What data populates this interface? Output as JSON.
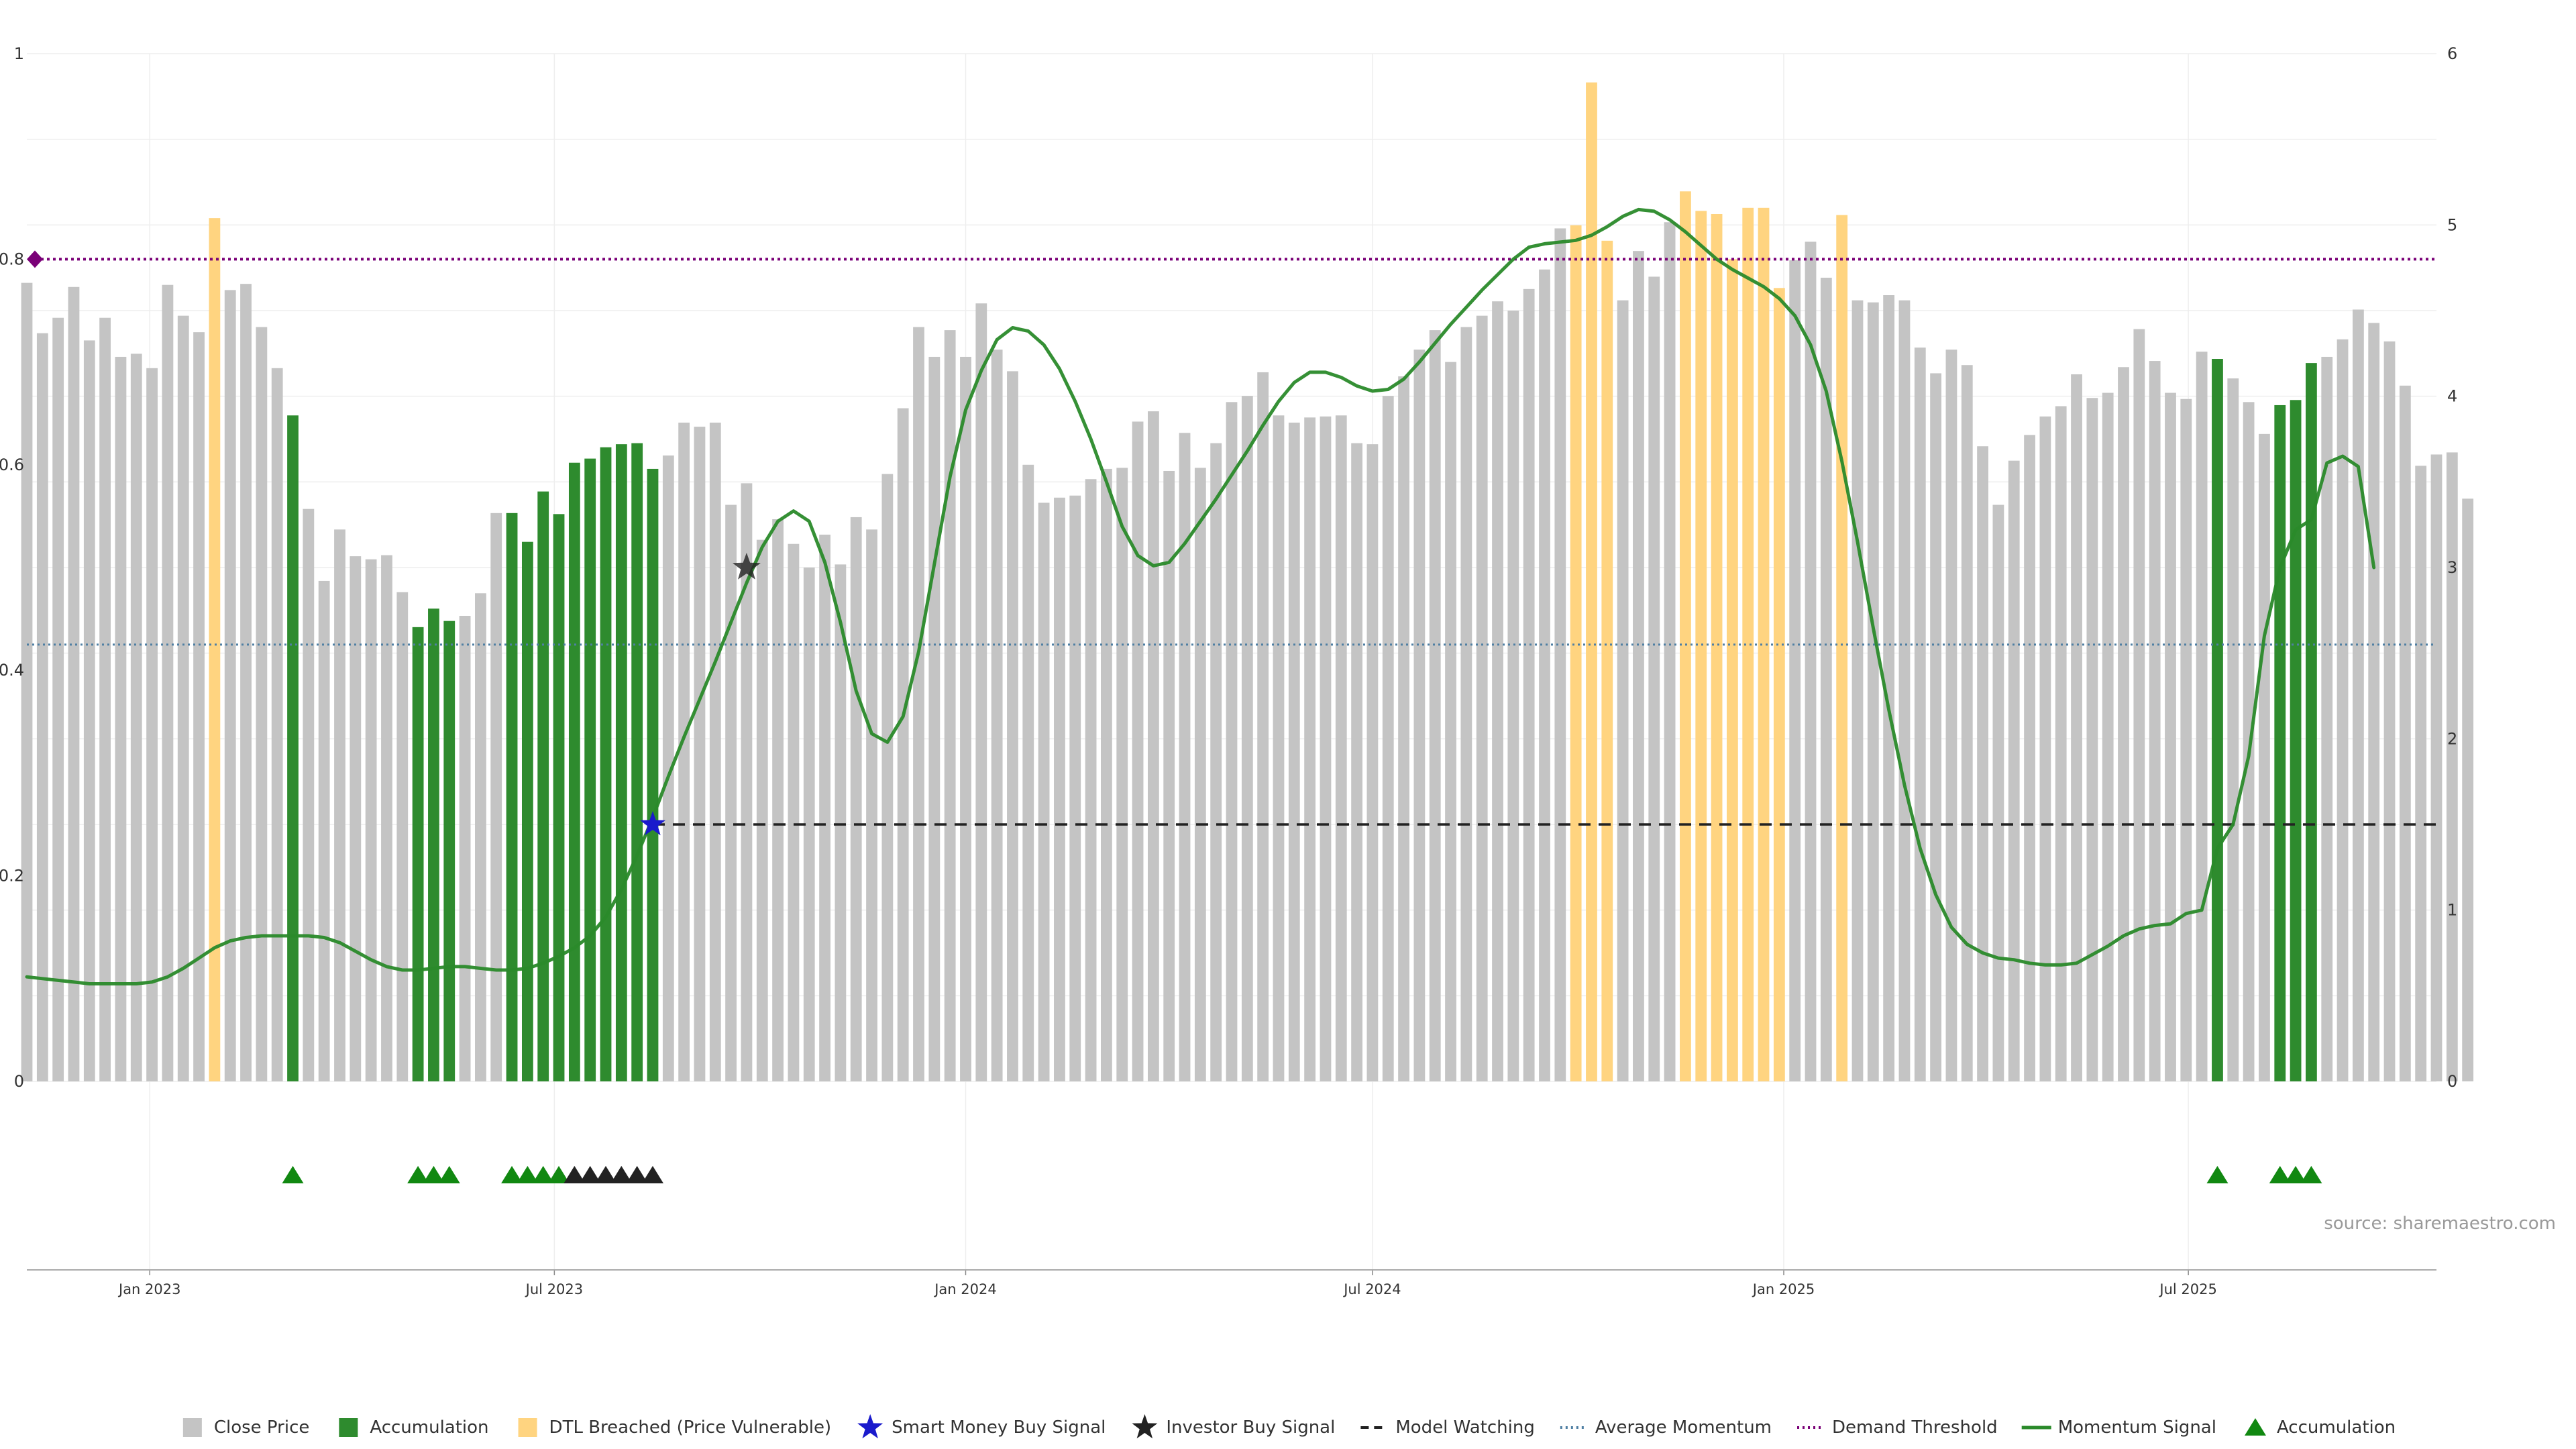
{
  "chart_data": {
    "type": "bar",
    "source_text": "source: sharemaestro.com",
    "colors": {
      "close": "#c4c4c4",
      "accumulation": "#2e8b2e",
      "dtl": "#ffd480",
      "momentum": "#2a8a2a",
      "avg_line": "#4f7fa3",
      "threshold": "#7a0077",
      "watching": "#222222",
      "smart_money": "#1a1acc",
      "investor": "#222222",
      "acc_marker": "#118811"
    },
    "y_left": {
      "min": 0,
      "max": 1,
      "ticks": [
        "0",
        "0.2",
        "0.4",
        "0.6",
        "0.8",
        "1"
      ],
      "tick_values": [
        0,
        0.2,
        0.4,
        0.6,
        0.8,
        1.0
      ]
    },
    "y_right": {
      "min": 0,
      "max": 6,
      "ticks": [
        "0",
        "1",
        "2",
        "3",
        "4",
        "5",
        "6"
      ],
      "tick_values": [
        0,
        1,
        2,
        3,
        4,
        5,
        6
      ]
    },
    "x_axis": {
      "start": "2022-11-07",
      "end": "2025-10-20",
      "ticks": [
        {
          "label": "Jan 2023",
          "date": "2023-01-01"
        },
        {
          "label": "Jul 2023",
          "date": "2023-07-01"
        },
        {
          "label": "Jan 2024",
          "date": "2024-01-01"
        },
        {
          "label": "Jul 2024",
          "date": "2024-07-01"
        },
        {
          "label": "Jan 2025",
          "date": "2025-01-01"
        },
        {
          "label": "Jul 2025",
          "date": "2025-07-01"
        }
      ]
    },
    "first_bar_date": "2022-11-07",
    "bar_interval_days": 7,
    "close": [
      0.777,
      0.728,
      0.743,
      0.773,
      0.721,
      0.743,
      0.705,
      0.708,
      0.694,
      0.775,
      0.745,
      0.729,
      0.84,
      0.77,
      0.776,
      0.734,
      0.694,
      0.648,
      0.557,
      0.487,
      0.537,
      0.511,
      0.508,
      0.512,
      0.476,
      0.442,
      0.46,
      0.448,
      0.453,
      0.475,
      0.553,
      0.553,
      0.525,
      0.574,
      0.552,
      0.602,
      0.606,
      0.617,
      0.62,
      0.621,
      0.596,
      0.609,
      0.641,
      0.637,
      0.641,
      0.561,
      0.582,
      0.527,
      0.547,
      0.523,
      0.5,
      0.532,
      0.503,
      0.549,
      0.537,
      0.591,
      0.655,
      0.734,
      0.705,
      0.731,
      0.705,
      0.757,
      0.712,
      0.691,
      0.6,
      0.563,
      0.568,
      0.57,
      0.586,
      0.596,
      0.597,
      0.642,
      0.652,
      0.594,
      0.631,
      0.597,
      0.621,
      0.661,
      0.667,
      0.69,
      0.648,
      0.641,
      0.646,
      0.647,
      0.648,
      0.621,
      0.62,
      0.667,
      0.686,
      0.712,
      0.731,
      0.7,
      0.734,
      0.745,
      0.759,
      0.75,
      0.771,
      0.79,
      0.83,
      0.833,
      0.972,
      0.818,
      0.76,
      0.808,
      0.783,
      0.836,
      0.866,
      0.847,
      0.844,
      0.8,
      0.85,
      0.85,
      0.772,
      0.799,
      0.817,
      0.782,
      0.843,
      0.76,
      0.758,
      0.765,
      0.76,
      0.714,
      0.689,
      0.712,
      0.697,
      0.618,
      0.561,
      0.604,
      0.629,
      0.647,
      0.657,
      0.688,
      0.665,
      0.67,
      0.695,
      0.732,
      0.701,
      0.67,
      0.664,
      0.71,
      0.703,
      0.684,
      0.661,
      0.63,
      0.658,
      0.663,
      0.699,
      0.705,
      0.722,
      0.751,
      0.738,
      0.72,
      0.677,
      0.599,
      0.61,
      0.612,
      0.567
    ],
    "accumulation_bar_indices": [
      17,
      25,
      26,
      27,
      31,
      32,
      33,
      34,
      35,
      36,
      37,
      38,
      39,
      40,
      140,
      144,
      145,
      146
    ],
    "dtl_bar_indices": [
      12,
      99,
      100,
      101,
      106,
      107,
      108,
      109,
      110,
      111,
      112,
      116
    ],
    "momentum": [
      0.61,
      0.6,
      0.59,
      0.58,
      0.57,
      0.57,
      0.57,
      0.57,
      0.58,
      0.61,
      0.66,
      0.72,
      0.78,
      0.82,
      0.84,
      0.85,
      0.85,
      0.85,
      0.85,
      0.84,
      0.81,
      0.76,
      0.71,
      0.67,
      0.65,
      0.65,
      0.66,
      0.67,
      0.67,
      0.66,
      0.65,
      0.65,
      0.66,
      0.69,
      0.73,
      0.78,
      0.85,
      0.96,
      1.12,
      1.32,
      1.54,
      1.78,
      2.01,
      2.23,
      2.45,
      2.68,
      2.91,
      3.12,
      3.27,
      3.33,
      3.27,
      3.03,
      2.68,
      2.28,
      2.03,
      1.98,
      2.13,
      2.51,
      3.02,
      3.53,
      3.92,
      4.15,
      4.33,
      4.4,
      4.38,
      4.3,
      4.16,
      3.97,
      3.75,
      3.5,
      3.24,
      3.07,
      3.01,
      3.03,
      3.14,
      3.27,
      3.4,
      3.54,
      3.68,
      3.83,
      3.97,
      4.08,
      4.14,
      4.14,
      4.11,
      4.06,
      4.03,
      4.04,
      4.1,
      4.2,
      4.31,
      4.42,
      4.52,
      4.62,
      4.71,
      4.8,
      4.87,
      4.89,
      4.9,
      4.91,
      4.94,
      4.99,
      5.05,
      5.09,
      5.08,
      5.03,
      4.96,
      4.88,
      4.8,
      4.74,
      4.69,
      4.64,
      4.57,
      4.47,
      4.3,
      4.03,
      3.62,
      3.15,
      2.65,
      2.17,
      1.73,
      1.36,
      1.09,
      0.9,
      0.8,
      0.75,
      0.72,
      0.71,
      0.69,
      0.68,
      0.68,
      0.69,
      0.74,
      0.79,
      0.85,
      0.89,
      0.91,
      0.92,
      0.98,
      1.0,
      1.36,
      1.5,
      1.9,
      2.6,
      3.0,
      3.22,
      3.28,
      3.61,
      3.65,
      3.59,
      3.0
    ],
    "average_momentum": 2.55,
    "demand_threshold": 0.8,
    "model_watching": {
      "start_index": 40,
      "value": 0.25
    },
    "smart_money_buy": {
      "index": 40,
      "value": 0.25
    },
    "investor_buy": {
      "index": 46,
      "value": 0.5
    },
    "accumulation_marker_indices": [
      17,
      25,
      26,
      27,
      31,
      32,
      33,
      34,
      140,
      144,
      145,
      146
    ],
    "investor_marker_indices": [
      35,
      36,
      37,
      38,
      39,
      40
    ],
    "legend": [
      {
        "key": "close",
        "label": "Close Price"
      },
      {
        "key": "accumulation",
        "label": "Accumulation"
      },
      {
        "key": "dtl",
        "label": "DTL Breached (Price Vulnerable)"
      },
      {
        "key": "smart_money",
        "label": "Smart Money Buy Signal"
      },
      {
        "key": "investor",
        "label": "Investor Buy Signal"
      },
      {
        "key": "watching",
        "label": "Model Watching"
      },
      {
        "key": "avg_line",
        "label": "Average Momentum"
      },
      {
        "key": "threshold",
        "label": "Demand Threshold"
      },
      {
        "key": "momentum",
        "label": "Momentum Signal"
      },
      {
        "key": "acc_marker",
        "label": "Accumulation"
      }
    ]
  }
}
